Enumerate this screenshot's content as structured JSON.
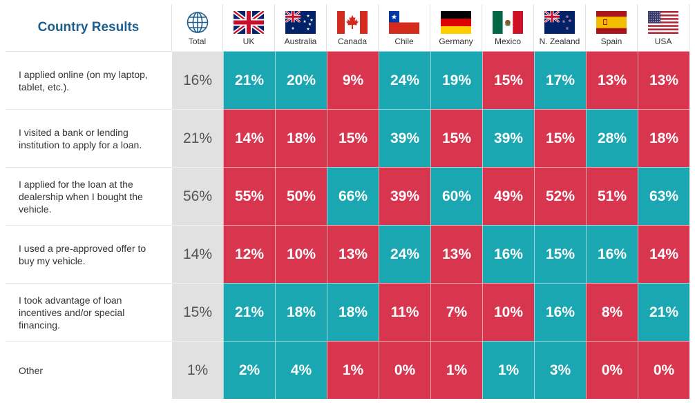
{
  "chart_data": {
    "type": "table",
    "title": "Country Results",
    "columns": [
      "Total",
      "UK",
      "Australia",
      "Canada",
      "Chile",
      "Germany",
      "Mexico",
      "N. Zealand",
      "Spain",
      "USA"
    ],
    "column_icons": [
      "globe-icon",
      "flag-uk-icon",
      "flag-australia-icon",
      "flag-canada-icon",
      "flag-chile-icon",
      "flag-germany-icon",
      "flag-mexico-icon",
      "flag-new-zealand-icon",
      "flag-spain-icon",
      "flag-usa-icon"
    ],
    "rows": [
      {
        "label": "I applied online (on my laptop, tablet, etc.).",
        "values": [
          "16%",
          "21%",
          "20%",
          "9%",
          "24%",
          "19%",
          "15%",
          "17%",
          "13%",
          "13%"
        ],
        "colors": [
          "total",
          "teal",
          "teal",
          "red",
          "teal",
          "teal",
          "red",
          "teal",
          "red",
          "red"
        ]
      },
      {
        "label": "I visited a bank or lending institution to apply for a loan.",
        "values": [
          "21%",
          "14%",
          "18%",
          "15%",
          "39%",
          "15%",
          "39%",
          "15%",
          "28%",
          "18%"
        ],
        "colors": [
          "total",
          "red",
          "red",
          "red",
          "teal",
          "red",
          "teal",
          "red",
          "teal",
          "red"
        ]
      },
      {
        "label": "I applied for the loan at the dealership when I bought the vehicle.",
        "values": [
          "56%",
          "55%",
          "50%",
          "66%",
          "39%",
          "60%",
          "49%",
          "52%",
          "51%",
          "63%"
        ],
        "colors": [
          "total",
          "red",
          "red",
          "teal",
          "red",
          "teal",
          "red",
          "red",
          "red",
          "teal"
        ]
      },
      {
        "label": "I used a pre-approved offer to buy my vehicle.",
        "values": [
          "14%",
          "12%",
          "10%",
          "13%",
          "24%",
          "13%",
          "16%",
          "15%",
          "16%",
          "14%"
        ],
        "colors": [
          "total",
          "red",
          "red",
          "red",
          "teal",
          "red",
          "teal",
          "teal",
          "teal",
          "red"
        ]
      },
      {
        "label": "I took advantage of loan incentives and/or special financing.",
        "values": [
          "15%",
          "21%",
          "18%",
          "18%",
          "11%",
          "7%",
          "10%",
          "16%",
          "8%",
          "21%"
        ],
        "colors": [
          "total",
          "teal",
          "teal",
          "teal",
          "red",
          "red",
          "red",
          "teal",
          "red",
          "teal"
        ]
      },
      {
        "label": "Other",
        "values": [
          "1%",
          "2%",
          "4%",
          "1%",
          "0%",
          "1%",
          "1%",
          "3%",
          "0%",
          "0%"
        ],
        "colors": [
          "total",
          "teal",
          "teal",
          "red",
          "red",
          "red",
          "teal",
          "teal",
          "red",
          "red"
        ]
      }
    ],
    "colors": {
      "teal": "#1aa7b1",
      "red": "#d8354f",
      "total": "#e1e1e1",
      "title": "#1d5f8e"
    }
  }
}
